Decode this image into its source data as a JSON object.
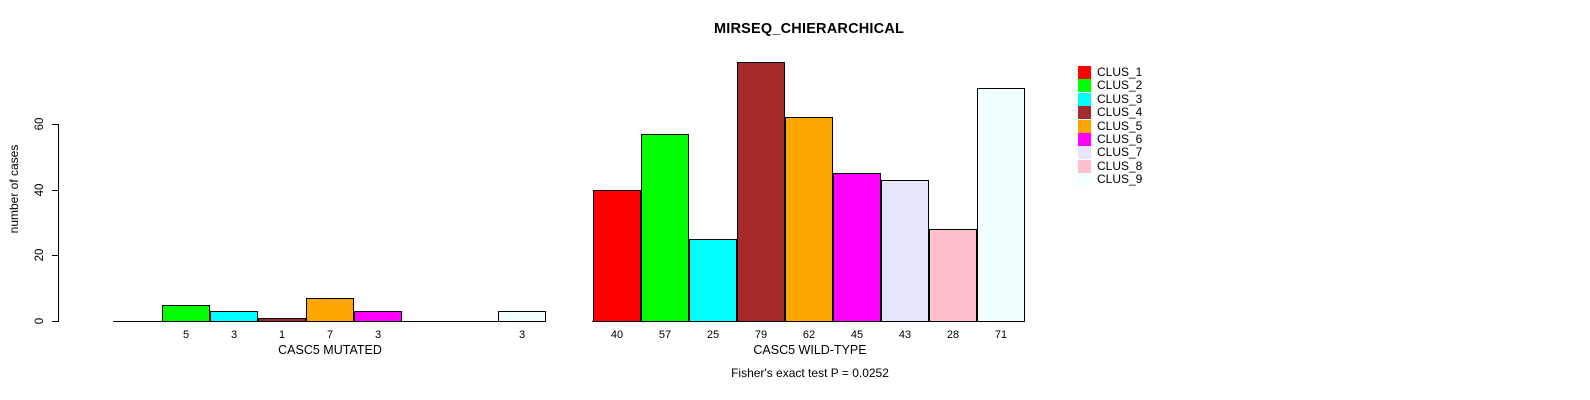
{
  "chart_data": {
    "type": "bar",
    "title": "MIRSEQ_CHIERARCHICAL",
    "ylabel": "number of cases",
    "yticks": [
      0,
      20,
      40,
      60
    ],
    "ylim": [
      0,
      80
    ],
    "grid": false,
    "legend_position": "right",
    "legend": [
      {
        "label": "CLUS_1",
        "color": "#FF0000"
      },
      {
        "label": "CLUS_2",
        "color": "#00FF00"
      },
      {
        "label": "CLUS_3",
        "color": "#00FFFF"
      },
      {
        "label": "CLUS_4",
        "color": "#A52A2A"
      },
      {
        "label": "CLUS_5",
        "color": "#FFA500"
      },
      {
        "label": "CLUS_6",
        "color": "#FF00FF"
      },
      {
        "label": "CLUS_7",
        "color": "#E6E6FA"
      },
      {
        "label": "CLUS_8",
        "color": "#FFC0CB"
      },
      {
        "label": "CLUS_9",
        "color": "#F0FFFF"
      }
    ],
    "groups": [
      {
        "label": "CASC5 MUTATED",
        "values": [
          0,
          5,
          3,
          1,
          7,
          3,
          0,
          0,
          3
        ]
      },
      {
        "label": "CASC5 WILD-TYPE",
        "values": [
          40,
          57,
          25,
          79,
          62,
          45,
          43,
          28,
          71
        ]
      }
    ],
    "footnote": "Fisher's exact test P = 0.0252"
  }
}
